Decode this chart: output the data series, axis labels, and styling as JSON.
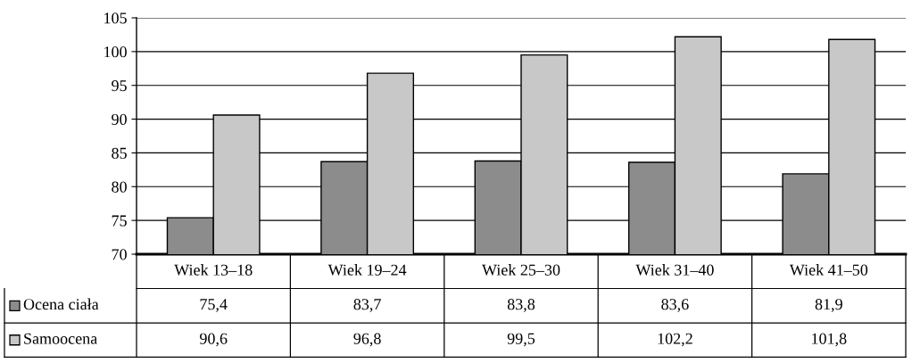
{
  "chart_data": {
    "type": "bar",
    "categories": [
      "Wiek 13–18",
      "Wiek 19–24",
      "Wiek 25–30",
      "Wiek 31–40",
      "Wiek 41–50"
    ],
    "series": [
      {
        "name": "Ocena ciała",
        "color": "#8c8c8c",
        "values": [
          75.4,
          83.7,
          83.8,
          83.6,
          81.9
        ],
        "value_labels": [
          "75,4",
          "83,7",
          "83,8",
          "83,6",
          "81,9"
        ]
      },
      {
        "name": "Samoocena",
        "color": "#c8c8c8",
        "values": [
          90.6,
          96.8,
          99.5,
          102.2,
          101.8
        ],
        "value_labels": [
          "90,6",
          "96,8",
          "99,5",
          "102,2",
          "101,8"
        ]
      }
    ],
    "ylim": [
      70,
      105
    ],
    "yticks": [
      70,
      75,
      80,
      85,
      90,
      95,
      100,
      105
    ],
    "grid": "y",
    "legend": "bottom"
  }
}
